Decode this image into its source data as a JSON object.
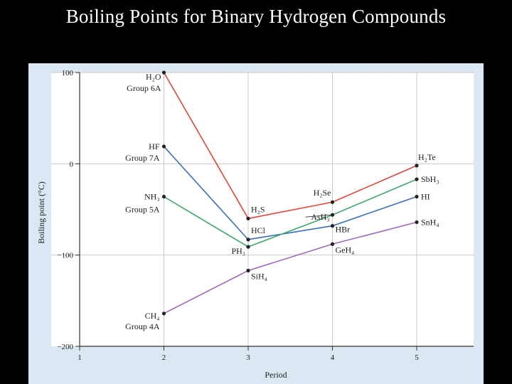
{
  "slide": {
    "title": "Boiling Points for Binary Hydrogen Compounds"
  },
  "chart_data": {
    "type": "line",
    "xlabel": "Period",
    "ylabel": "Boiling point (°C)",
    "xlim": [
      1,
      5.6
    ],
    "ylim": [
      -200,
      100
    ],
    "xticks": [
      1,
      2,
      3,
      4,
      5
    ],
    "yticks": [
      100,
      0,
      -100,
      -200
    ],
    "grid": true,
    "series": [
      {
        "group": "Group 6A",
        "color": "#e0463b",
        "points": [
          {
            "x": 2,
            "y": 100,
            "label": "H₂O"
          },
          {
            "x": 3,
            "y": -60,
            "label": "H₂S"
          },
          {
            "x": 4,
            "y": -42,
            "label": "H₂Se"
          },
          {
            "x": 5,
            "y": -2,
            "label": "H₂Te"
          }
        ]
      },
      {
        "group": "Group 7A",
        "color": "#3c6fb5",
        "points": [
          {
            "x": 2,
            "y": 19,
            "label": "HF"
          },
          {
            "x": 3,
            "y": -83,
            "label": "HCl"
          },
          {
            "x": 4,
            "y": -68,
            "label": "HBr"
          },
          {
            "x": 5,
            "y": -36,
            "label": "HI"
          }
        ]
      },
      {
        "group": "Group 5A",
        "color": "#3fa86a",
        "points": [
          {
            "x": 2,
            "y": -36,
            "label": "NH₃"
          },
          {
            "x": 3,
            "y": -91,
            "label": "PH₃"
          },
          {
            "x": 4,
            "y": -56,
            "label": "AsH₃"
          },
          {
            "x": 5,
            "y": -17,
            "label": "SbH₃"
          }
        ]
      },
      {
        "group": "Group 4A",
        "color": "#9b6bbf",
        "points": [
          {
            "x": 2,
            "y": -164,
            "label": "CH₄"
          },
          {
            "x": 3,
            "y": -117,
            "label": "SiH₄"
          },
          {
            "x": 4,
            "y": -88,
            "label": "GeH₄"
          },
          {
            "x": 5,
            "y": -64,
            "label": "SnH₄"
          }
        ]
      }
    ]
  }
}
